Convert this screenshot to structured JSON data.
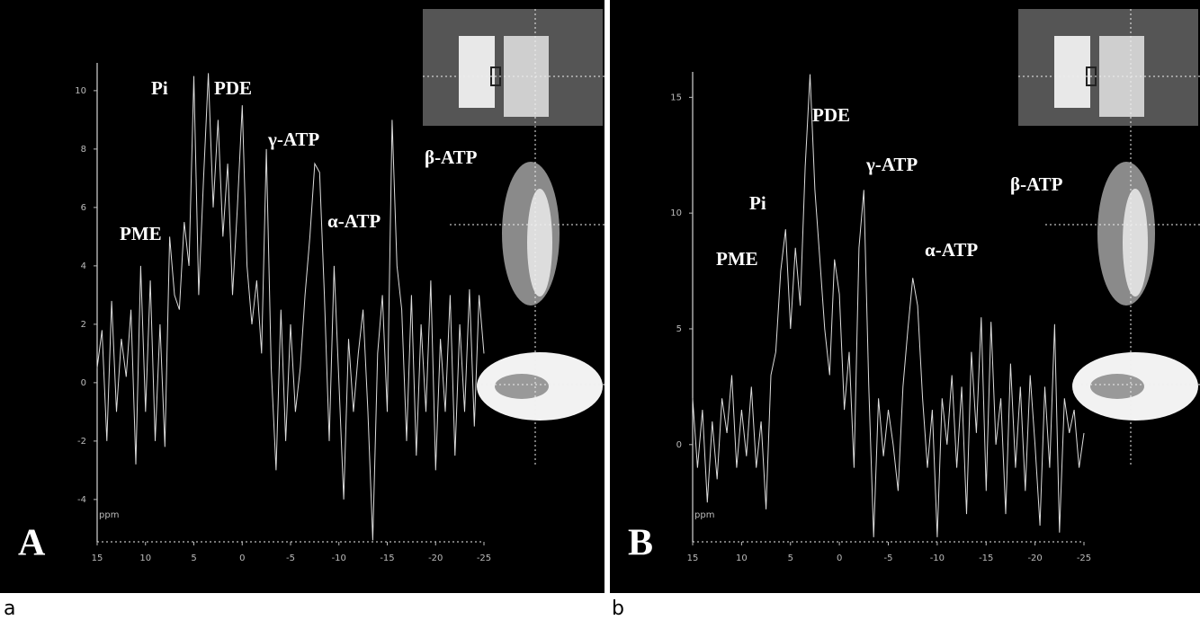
{
  "chart_data": [
    {
      "type": "line",
      "panel_label": "A",
      "x_label": "ppm",
      "x": [
        15,
        14.5,
        14,
        13.5,
        13,
        12.5,
        12,
        11.5,
        11,
        10.5,
        10,
        9.5,
        9,
        8.5,
        8,
        7.5,
        7,
        6.5,
        6,
        5.5,
        5,
        4.5,
        4,
        3.5,
        3,
        2.5,
        2,
        1.5,
        1,
        0.5,
        0,
        -0.5,
        -1,
        -1.5,
        -2,
        -2.5,
        -3,
        -3.5,
        -4,
        -4.5,
        -5,
        -5.5,
        -6,
        -6.5,
        -7,
        -7.5,
        -8,
        -8.5,
        -9,
        -9.5,
        -10,
        -10.5,
        -11,
        -11.5,
        -12,
        -12.5,
        -13,
        -13.5,
        -14,
        -14.5,
        -15,
        -15.5,
        -16,
        -16.5,
        -17,
        -17.5,
        -18,
        -18.5,
        -19,
        -19.5,
        -20,
        -20.5,
        -21,
        -21.5,
        -22,
        -22.5,
        -23,
        -23.5,
        -24,
        -24.5,
        -25
      ],
      "values": [
        0.5,
        1.8,
        -2,
        2.8,
        -1,
        1.5,
        0.2,
        2.5,
        -2.8,
        4,
        -1,
        3.5,
        -2,
        2,
        -2.2,
        5,
        3,
        2.5,
        5.5,
        4,
        10.5,
        3,
        7,
        10.6,
        6,
        9,
        5,
        7.5,
        3,
        6,
        9.5,
        4,
        2,
        3.5,
        1,
        8,
        0.5,
        -3,
        2.5,
        -2,
        2,
        -1,
        0.5,
        3,
        5,
        7.5,
        7.2,
        3,
        -2,
        4,
        0,
        -4,
        1.5,
        -1,
        1,
        2.5,
        -1,
        -5.4,
        1,
        3,
        -1,
        9,
        4,
        2.5,
        -2,
        3,
        -2.5,
        2,
        -1,
        3.5,
        -3,
        1.5,
        -1,
        3,
        -2.5,
        2,
        -1,
        3.2,
        -1.5,
        3,
        1
      ],
      "color": "#dcdcdc",
      "xlim": [
        15,
        -25
      ],
      "xticks": [
        15,
        10,
        5,
        0,
        -5,
        -10,
        -15,
        -20,
        -25
      ],
      "ylim": [
        -5.45,
        10.95
      ],
      "yticks": [
        10,
        8,
        6,
        4,
        2,
        0,
        -2,
        -4
      ],
      "annotations": [
        "PME",
        "Pi",
        "PDE",
        "γ-ATP",
        "α-ATP",
        "β-ATP"
      ]
    },
    {
      "type": "line",
      "panel_label": "B",
      "x_label": "ppm",
      "x": [
        15,
        14.5,
        14,
        13.5,
        13,
        12.5,
        12,
        11.5,
        11,
        10.5,
        10,
        9.5,
        9,
        8.5,
        8,
        7.5,
        7,
        6.5,
        6,
        5.5,
        5,
        4.5,
        4,
        3.5,
        3,
        2.5,
        2,
        1.5,
        1,
        0.5,
        0,
        -0.5,
        -1,
        -1.5,
        -2,
        -2.5,
        -3,
        -3.5,
        -4,
        -4.5,
        -5,
        -5.5,
        -6,
        -6.5,
        -7,
        -7.5,
        -8,
        -8.5,
        -9,
        -9.5,
        -10,
        -10.5,
        -11,
        -11.5,
        -12,
        -12.5,
        -13,
        -13.5,
        -14,
        -14.5,
        -15,
        -15.5,
        -16,
        -16.5,
        -17,
        -17.5,
        -18,
        -18.5,
        -19,
        -19.5,
        -20,
        -20.5,
        -21,
        -21.5,
        -22,
        -22.5,
        -23,
        -23.5,
        -24,
        -24.5,
        -25
      ],
      "values": [
        2,
        -1,
        1.5,
        -2.5,
        1,
        -1.5,
        2,
        0.5,
        3,
        -1,
        1.5,
        -0.5,
        2.5,
        -1,
        1,
        -2.8,
        3,
        4,
        7.5,
        9.3,
        5,
        8.5,
        6,
        12,
        16,
        11,
        8,
        5,
        3,
        8,
        6.5,
        1.5,
        4,
        -1,
        8.5,
        11,
        2.5,
        -4,
        2,
        -0.5,
        1.5,
        0,
        -2,
        2.5,
        5,
        7.2,
        6,
        2,
        -1,
        1.5,
        -4,
        2,
        0,
        3,
        -1,
        2.5,
        -3,
        4,
        0.5,
        5.5,
        -2,
        5.3,
        0,
        2,
        -3,
        3.5,
        -1,
        2.5,
        -2,
        3,
        0,
        -3.5,
        2.5,
        -1,
        5.2,
        -3.8,
        2,
        0.5,
        1.5,
        -1,
        0.5
      ],
      "color": "#dcdcdc",
      "xlim": [
        15,
        -25
      ],
      "xticks": [
        15,
        10,
        5,
        0,
        -5,
        -10,
        -15,
        -20,
        -25
      ],
      "ylim": [
        -4.2,
        16.1
      ],
      "yticks": [
        15,
        10,
        5,
        0
      ],
      "annotations": [
        "PME",
        "Pi",
        "PDE",
        "γ-ATP",
        "α-ATP",
        "β-ATP"
      ]
    }
  ],
  "captions": [
    "a",
    "b"
  ]
}
